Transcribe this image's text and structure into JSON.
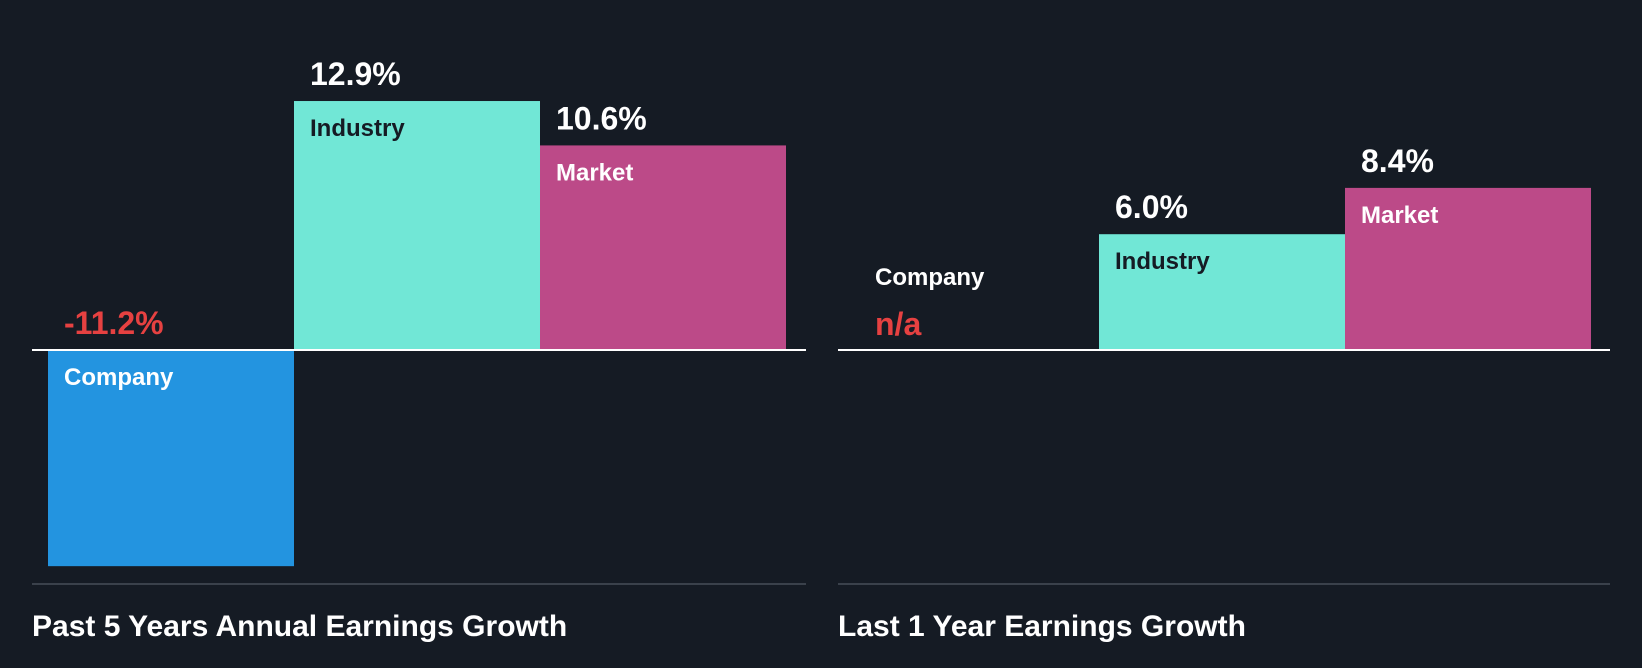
{
  "colors": {
    "background": "#151b24",
    "company": "#2394e0",
    "industry": "#71e7d6",
    "market": "#bc4a88",
    "negative": "#e64141",
    "text": "#ffffff",
    "dark_label": "#151b24"
  },
  "chart_data": [
    {
      "type": "bar",
      "title": "Past 5 Years Annual Earnings Growth",
      "categories": [
        "Company",
        "Industry",
        "Market"
      ],
      "values": [
        -11.2,
        12.9,
        10.6
      ],
      "value_labels": [
        "-11.2%",
        "12.9%",
        "10.6%"
      ],
      "ylim": [
        -11.2,
        12.9
      ],
      "grid": false,
      "legend": "none"
    },
    {
      "type": "bar",
      "title": "Last 1 Year Earnings Growth",
      "categories": [
        "Company",
        "Industry",
        "Market"
      ],
      "values": [
        null,
        6.0,
        8.4
      ],
      "value_labels": [
        "n/a",
        "6.0%",
        "8.4%"
      ],
      "ylim": [
        -11.2,
        12.9
      ],
      "grid": false,
      "legend": "none"
    }
  ]
}
